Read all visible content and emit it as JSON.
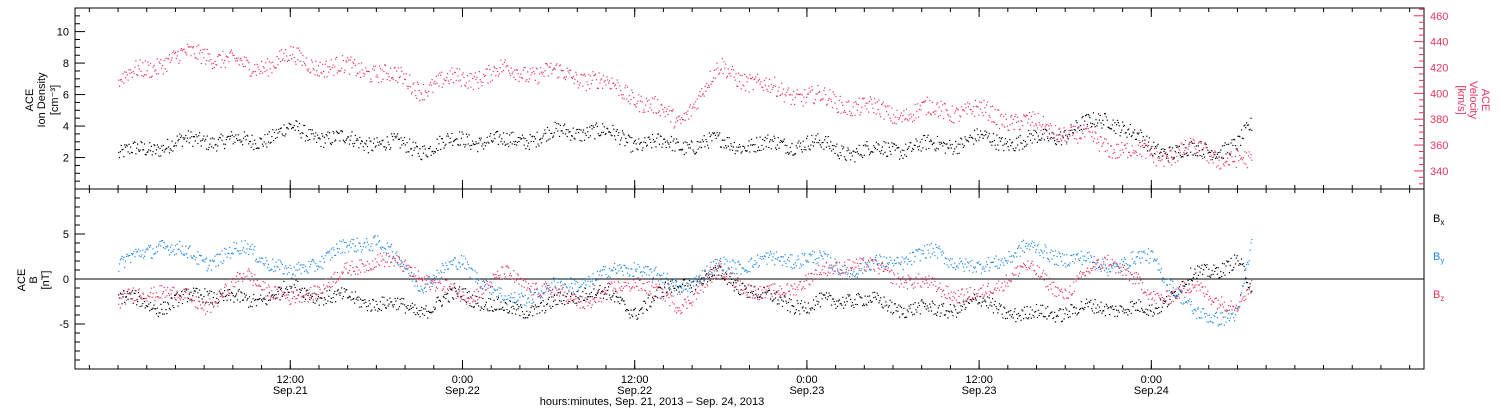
{
  "colors": {
    "black": "#000000",
    "pink": "#e8335f",
    "blue": "#1e88e5"
  },
  "chart_data": [
    {
      "type": "scatter",
      "panel": "top",
      "left_axis": {
        "label_lines": [
          "ACE",
          "Ion Density",
          "[cm⁻³]"
        ],
        "ylim": [
          0,
          11.5
        ],
        "tick_labels": [
          "2",
          "4",
          "6",
          "8",
          "10"
        ],
        "tick_values": [
          2,
          4,
          6,
          8,
          10
        ]
      },
      "right_axis": {
        "label_lines": [
          "ACE",
          "Velocity",
          "[km/s]"
        ],
        "ylim": [
          326,
          466
        ],
        "tick_labels": [
          "340",
          "360",
          "380",
          "400",
          "420",
          "440",
          "460"
        ],
        "tick_values": [
          340,
          360,
          380,
          400,
          420,
          440,
          460
        ]
      },
      "series": [
        {
          "axis": "left",
          "color": "#000000",
          "x": [
            0,
            3,
            6,
            9,
            12,
            15,
            18,
            21,
            24,
            27,
            30,
            33,
            36,
            39,
            42,
            45,
            48,
            51,
            54,
            57,
            60,
            63,
            66,
            69,
            72,
            75,
            78,
            79
          ],
          "y": [
            2.2,
            2.8,
            3.2,
            3.0,
            3.8,
            3.2,
            3.0,
            2.6,
            3.2,
            3.0,
            3.5,
            3.8,
            3.0,
            2.8,
            3.0,
            2.8,
            3.0,
            2.4,
            2.6,
            2.8,
            3.2,
            3.0,
            3.6,
            4.6,
            2.6,
            2.4,
            2.8,
            4.0
          ]
        },
        {
          "axis": "right",
          "color": "#e8335f",
          "x": [
            0,
            3,
            6,
            9,
            12,
            15,
            18,
            21,
            24,
            27,
            30,
            33,
            36,
            39,
            42,
            45,
            48,
            51,
            54,
            57,
            60,
            63,
            66,
            69,
            72,
            75,
            78,
            79
          ],
          "y": [
            410,
            425,
            432,
            420,
            428,
            420,
            418,
            405,
            412,
            418,
            416,
            412,
            398,
            378,
            420,
            405,
            398,
            392,
            384,
            388,
            386,
            378,
            370,
            360,
            352,
            356,
            348,
            345
          ]
        }
      ]
    },
    {
      "type": "scatter",
      "panel": "bottom",
      "axis": {
        "label_lines": [
          "ACE",
          "B",
          "[nT]"
        ],
        "ylim": [
          -10,
          10
        ],
        "tick_labels": [
          "-5",
          "0",
          "5"
        ],
        "tick_values": [
          -5,
          0,
          5
        ]
      },
      "legend": {
        "placement": "right",
        "entries": [
          {
            "label": "B",
            "sub": "x",
            "color": "#000000"
          },
          {
            "label": "B",
            "sub": "y",
            "color": "#1e88e5"
          },
          {
            "label": "B",
            "sub": "z",
            "color": "#e8335f"
          }
        ]
      },
      "zero_line": true,
      "series": [
        {
          "name": "Bx",
          "color": "#000000",
          "x": [
            0,
            3,
            6,
            9,
            12,
            15,
            18,
            21,
            24,
            27,
            30,
            33,
            36,
            39,
            42,
            45,
            48,
            51,
            54,
            57,
            60,
            63,
            66,
            69,
            72,
            75,
            78,
            79
          ],
          "y": [
            -2.0,
            -3.0,
            -1.5,
            -2.5,
            -1.0,
            -2.0,
            -2.5,
            -3.5,
            -1.5,
            -3.5,
            -3.0,
            -1.0,
            -3.5,
            -0.5,
            0.5,
            -2.0,
            -3.0,
            -2.0,
            -3.0,
            -3.5,
            -2.5,
            -4.0,
            -3.5,
            -3.0,
            -3.5,
            0.5,
            2.0,
            -1.5
          ]
        },
        {
          "name": "By",
          "color": "#1e88e5",
          "x": [
            0,
            3,
            6,
            9,
            12,
            15,
            18,
            21,
            24,
            27,
            30,
            33,
            36,
            39,
            42,
            45,
            48,
            51,
            54,
            57,
            60,
            63,
            66,
            69,
            72,
            75,
            78,
            79
          ],
          "y": [
            1.5,
            4.0,
            2.0,
            3.5,
            0.5,
            3.0,
            4.5,
            -0.5,
            2.0,
            -2.5,
            -1.0,
            0.0,
            1.5,
            -1.0,
            1.5,
            2.0,
            2.5,
            1.0,
            2.0,
            3.0,
            1.0,
            3.5,
            2.5,
            1.5,
            2.5,
            -4.0,
            -4.0,
            4.0
          ]
        },
        {
          "name": "Bz",
          "color": "#e8335f",
          "x": [
            0,
            3,
            6,
            9,
            12,
            15,
            18,
            21,
            24,
            27,
            30,
            33,
            36,
            39,
            42,
            45,
            48,
            51,
            54,
            57,
            60,
            63,
            66,
            69,
            72,
            75,
            78,
            79
          ],
          "y": [
            -2.5,
            -1.0,
            -3.0,
            0.5,
            -2.5,
            0.0,
            2.5,
            0.5,
            -2.0,
            0.5,
            -1.5,
            -2.5,
            0.0,
            -3.0,
            1.0,
            -2.0,
            0.0,
            2.0,
            0.5,
            -1.0,
            -2.0,
            1.5,
            -1.5,
            2.5,
            -2.0,
            -1.0,
            -3.0,
            -1.0
          ]
        }
      ]
    }
  ],
  "x_axis": {
    "xlim_hours": [
      -3,
      91
    ],
    "major_ticks": [
      {
        "hours": 12,
        "time": "12:00",
        "date": "Sep.21"
      },
      {
        "hours": 24,
        "time": "0:00",
        "date": "Sep.22"
      },
      {
        "hours": 36,
        "time": "12:00",
        "date": "Sep.22"
      },
      {
        "hours": 48,
        "time": "0:00",
        "date": "Sep.23"
      },
      {
        "hours": 60,
        "time": "12:00",
        "date": "Sep.23"
      },
      {
        "hours": 72,
        "time": "0:00",
        "date": "Sep.24"
      }
    ],
    "title": "hours:minutes, Sep. 21, 2013 – Sep. 24, 2013"
  }
}
